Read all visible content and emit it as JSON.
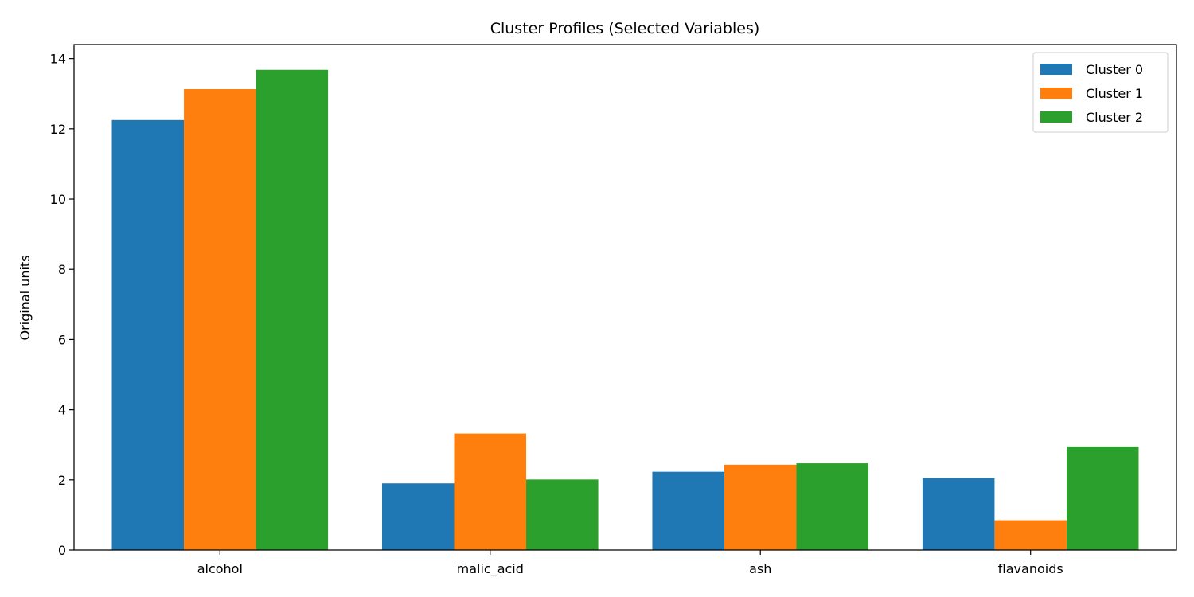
{
  "chart_data": {
    "type": "bar",
    "title": "Cluster Profiles (Selected Variables)",
    "xlabel": "",
    "ylabel": "Original units",
    "categories": [
      "alcohol",
      "malic_acid",
      "ash",
      "flavanoids"
    ],
    "series": [
      {
        "name": "Cluster 0",
        "color": "#1f77b4",
        "values": [
          12.25,
          1.9,
          2.23,
          2.05
        ]
      },
      {
        "name": "Cluster 1",
        "color": "#ff7f0e",
        "values": [
          13.13,
          3.32,
          2.43,
          0.85
        ]
      },
      {
        "name": "Cluster 2",
        "color": "#2ca02c",
        "values": [
          13.68,
          2.01,
          2.47,
          2.95
        ]
      }
    ],
    "ylim": [
      0,
      14.4
    ],
    "yticks": [
      0,
      2,
      4,
      6,
      8,
      10,
      12,
      14
    ],
    "legend_position": "top-right",
    "grid": false
  }
}
